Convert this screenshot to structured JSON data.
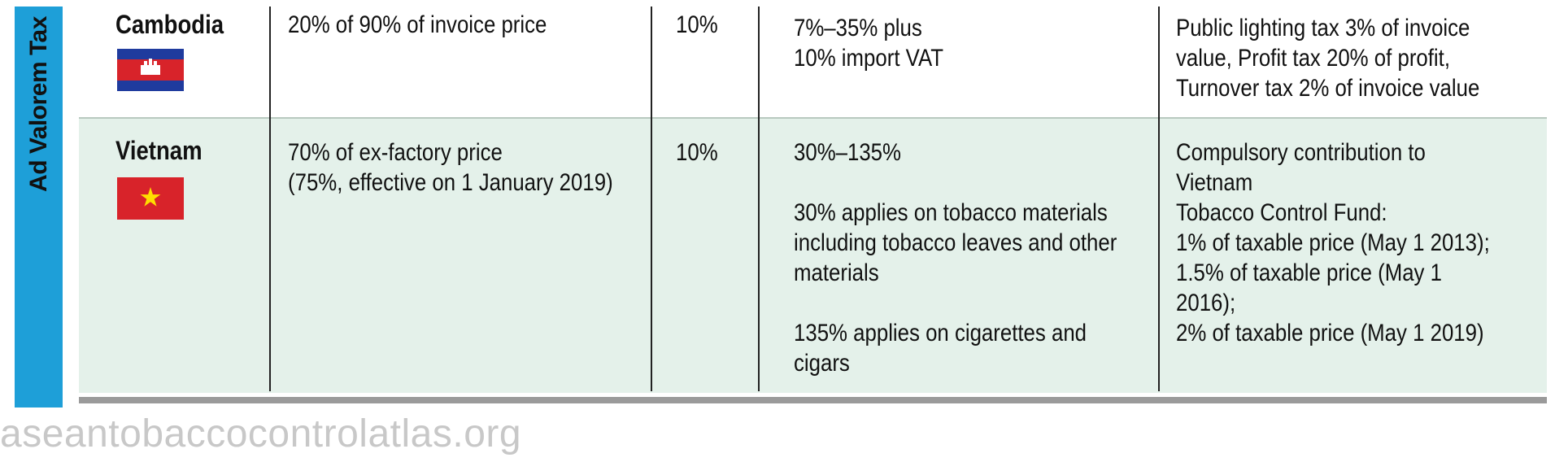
{
  "section_label": "Ad Valorem Tax",
  "colors": {
    "side_band": "#1e9fd8",
    "row_alt": "#e4f1ea",
    "rule": "#9a9a9a",
    "watermark": "#c8c8c8"
  },
  "rows": [
    {
      "country": "Cambodia",
      "flag_icon": "cambodia-flag-icon",
      "tax_base": "20% of 90% of invoice price",
      "rate": "10%",
      "import_tax": "7%–35% plus\n10% import VAT",
      "other": "Public lighting tax 3% of invoice\nvalue, Profit tax 20% of profit,\nTurnover tax 2% of invoice value"
    },
    {
      "country": "Vietnam",
      "flag_icon": "vietnam-flag-icon",
      "tax_base": "70% of ex-factory price\n(75%, effective on 1 January 2019)",
      "rate": "10%",
      "import_tax": "30%–135%\n\n30% applies on tobacco materials\nincluding tobacco leaves and other\nmaterials\n\n135% applies on cigarettes and\ncigars",
      "other": "Compulsory contribution to Vietnam\nTobacco Control Fund:\n1% of taxable price (May 1 2013);\n1.5% of taxable price (May 1 2016);\n2% of taxable price (May 1 2019)"
    }
  ],
  "watermark": "aseantobaccocontrolatlas.org"
}
